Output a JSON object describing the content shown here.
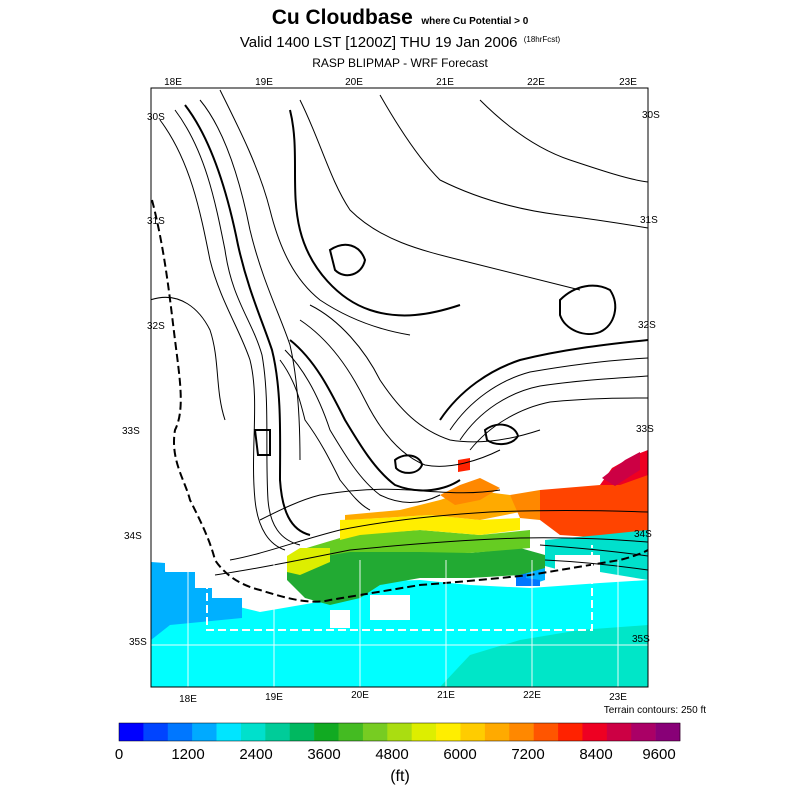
{
  "header": {
    "title": "Cu Cloudbase",
    "title_qualifier": "where Cu Potential > 0",
    "valid": "Valid 1400 LST [1200Z] THU 19 Jan 2006",
    "forecast_hours": "(18hrFcst)",
    "subtitle": "RASP BLIPMAP - WRF Forecast"
  },
  "map": {
    "lon_labels_top": [
      "18E",
      "19E",
      "20E",
      "21E",
      "22E",
      "23E"
    ],
    "lon_labels_bottom": [
      "18E",
      "19E",
      "20E",
      "21E",
      "22E",
      "23E"
    ],
    "lat_labels_left": [
      "30S",
      "31S",
      "32S",
      "33S",
      "34S",
      "35S"
    ],
    "lat_labels_right": [
      "30S",
      "31S",
      "32S",
      "33S",
      "34S",
      "35S"
    ],
    "terrain_note": "Terrain contours: 250 ft"
  },
  "colorbar": {
    "colors": [
      "#0000ff",
      "#0044ff",
      "#0077ff",
      "#00aaff",
      "#00e5ff",
      "#00e0cc",
      "#00cc99",
      "#00b860",
      "#11aa22",
      "#44bb22",
      "#77cc22",
      "#aadd11",
      "#ddee00",
      "#ffee00",
      "#ffcc00",
      "#ffaa00",
      "#ff8800",
      "#ff5500",
      "#ff2200",
      "#ee0022",
      "#cc0044",
      "#aa0066",
      "#880077"
    ],
    "tick_labels": [
      "0",
      "1200",
      "2400",
      "3600",
      "4800",
      "6000",
      "7200",
      "8400",
      "9600"
    ],
    "unit": "(ft)"
  }
}
